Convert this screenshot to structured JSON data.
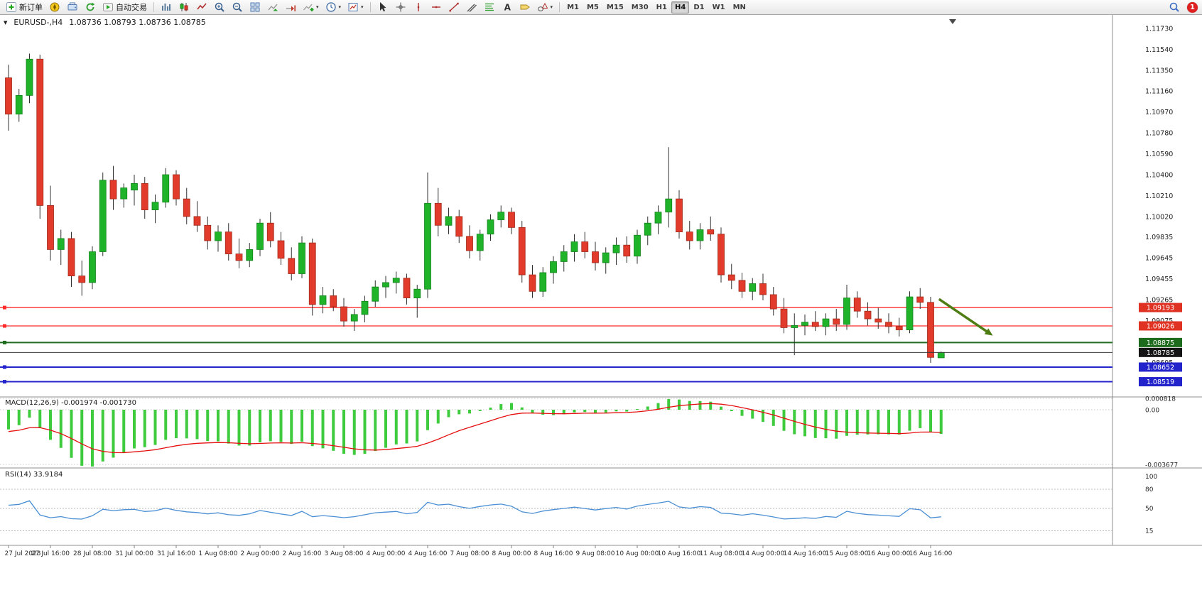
{
  "toolbar": {
    "new_order_label": "新订单",
    "autotrading_label": "自动交易",
    "timeframes": [
      "M1",
      "M5",
      "M15",
      "M30",
      "H1",
      "H4",
      "D1",
      "W1",
      "MN"
    ],
    "active_timeframe": "H4",
    "notification_count": "1"
  },
  "chart": {
    "symbol_title": "EURUSD-,H4",
    "ohlc_display": "1.08736 1.08793 1.08736 1.08785"
  },
  "chart_data": {
    "type": "candlestick",
    "symbol": "EURUSD",
    "timeframe": "H4",
    "colors": {
      "bull": "#1fb32a",
      "bull_border": "#13831c",
      "bear": "#e23b2b",
      "bear_border": "#a02a1b",
      "wick": "#303030",
      "macd_hist": "#3ecb3e",
      "macd_signal": "#e60f0f",
      "rsi_line": "#4a8fd4"
    },
    "price_axis_labels": [
      "1.11730",
      "1.11540",
      "1.11350",
      "1.11160",
      "1.10970",
      "1.10780",
      "1.10590",
      "1.10400",
      "1.10210",
      "1.10020",
      "1.09835",
      "1.09645",
      "1.09455",
      "1.09265",
      "1.09075",
      "1.08885",
      "1.08695"
    ],
    "x_labels": [
      "27 Jul 2023",
      "27 Jul 16:00",
      "28 Jul 08:00",
      "31 Jul 00:00",
      "31 Jul 16:00",
      "1 Aug 08:00",
      "2 Aug 00:00",
      "2 Aug 16:00",
      "3 Aug 08:00",
      "4 Aug 00:00",
      "4 Aug 16:00",
      "7 Aug 08:00",
      "8 Aug 00:00",
      "8 Aug 16:00",
      "9 Aug 08:00",
      "10 Aug 00:00",
      "10 Aug 16:00",
      "11 Aug 08:00",
      "14 Aug 00:00",
      "14 Aug 16:00",
      "15 Aug 08:00",
      "16 Aug 00:00",
      "16 Aug 16:00"
    ],
    "candles": [
      [
        1.1128,
        1.114,
        1.108,
        1.1095
      ],
      [
        1.1095,
        1.1118,
        1.1088,
        1.1112
      ],
      [
        1.1112,
        1.115,
        1.1105,
        1.1145
      ],
      [
        1.1145,
        1.1149,
        1.1,
        1.1012
      ],
      [
        1.1012,
        1.103,
        1.0962,
        1.0972
      ],
      [
        1.0972,
        1.099,
        1.0958,
        1.0982
      ],
      [
        1.0982,
        1.0988,
        1.0938,
        1.0948
      ],
      [
        1.0948,
        1.0962,
        1.093,
        1.0942
      ],
      [
        1.0942,
        1.0975,
        1.0936,
        1.097
      ],
      [
        1.097,
        1.1042,
        1.0966,
        1.1035
      ],
      [
        1.1035,
        1.1048,
        1.1008,
        1.1018
      ],
      [
        1.1018,
        1.1032,
        1.101,
        1.1028
      ],
      [
        1.1026,
        1.104,
        1.1012,
        1.1032
      ],
      [
        1.1032,
        1.1038,
        1.1,
        1.1008
      ],
      [
        1.1008,
        1.1022,
        1.0996,
        1.1015
      ],
      [
        1.1015,
        1.1046,
        1.101,
        1.104
      ],
      [
        1.104,
        1.1044,
        1.1012,
        1.1018
      ],
      [
        1.1018,
        1.1028,
        1.0995,
        1.1002
      ],
      [
        1.1002,
        1.1016,
        1.0988,
        1.0994
      ],
      [
        1.0994,
        1.1002,
        1.0972,
        1.098
      ],
      [
        1.098,
        1.0994,
        1.097,
        1.0988
      ],
      [
        1.0988,
        1.0996,
        1.0962,
        1.0968
      ],
      [
        1.0968,
        1.0982,
        1.0955,
        1.0962
      ],
      [
        1.0962,
        1.0978,
        1.0956,
        1.0972
      ],
      [
        1.0972,
        1.1,
        1.0966,
        1.0996
      ],
      [
        1.0996,
        1.1006,
        1.0974,
        1.098
      ],
      [
        1.098,
        1.0988,
        1.0958,
        1.0964
      ],
      [
        1.0964,
        1.0974,
        1.0944,
        1.095
      ],
      [
        1.095,
        1.0984,
        1.0946,
        1.0978
      ],
      [
        1.0978,
        1.0982,
        1.0912,
        1.0922
      ],
      [
        1.0922,
        1.0938,
        1.0914,
        1.093
      ],
      [
        1.093,
        1.0936,
        1.0916,
        1.092
      ],
      [
        1.092,
        1.0928,
        1.0902,
        1.0907
      ],
      [
        1.0907,
        1.0918,
        1.0898,
        1.0913
      ],
      [
        1.0913,
        1.093,
        1.0906,
        1.0925
      ],
      [
        1.0925,
        1.0944,
        1.092,
        1.0938
      ],
      [
        1.0938,
        1.0948,
        1.0928,
        1.0942
      ],
      [
        1.0942,
        1.0952,
        1.0932,
        1.0946
      ],
      [
        1.0946,
        1.095,
        1.0922,
        1.0928
      ],
      [
        1.0928,
        1.094,
        1.091,
        1.0936
      ],
      [
        1.0936,
        1.1042,
        1.0928,
        1.1014
      ],
      [
        1.1014,
        1.1028,
        1.0984,
        1.0994
      ],
      [
        1.0994,
        1.101,
        1.0986,
        1.1002
      ],
      [
        1.1002,
        1.1008,
        1.0978,
        1.0984
      ],
      [
        1.0984,
        1.0994,
        1.0964,
        1.0971
      ],
      [
        1.0971,
        1.099,
        1.0962,
        1.0986
      ],
      [
        1.0986,
        1.1004,
        1.098,
        1.0999
      ],
      [
        1.0999,
        1.1012,
        1.0992,
        1.1006
      ],
      [
        1.1006,
        1.101,
        1.0986,
        1.0992
      ],
      [
        1.0992,
        1.0998,
        1.0942,
        1.0949
      ],
      [
        1.0949,
        1.0958,
        1.0928,
        1.0934
      ],
      [
        1.0934,
        1.0956,
        1.0929,
        1.0951
      ],
      [
        1.0951,
        1.0966,
        1.0941,
        1.0961
      ],
      [
        1.0961,
        1.0976,
        1.0952,
        1.097
      ],
      [
        1.097,
        1.0986,
        1.0961,
        1.0979
      ],
      [
        1.0979,
        1.0988,
        1.0964,
        1.097
      ],
      [
        1.097,
        1.0979,
        1.0953,
        1.096
      ],
      [
        1.096,
        1.0974,
        1.095,
        1.0969
      ],
      [
        1.0969,
        1.0983,
        1.0958,
        1.0976
      ],
      [
        1.0976,
        1.0984,
        1.096,
        1.0966
      ],
      [
        1.0966,
        1.099,
        1.0959,
        1.0985
      ],
      [
        1.0985,
        1.1002,
        1.0976,
        1.0996
      ],
      [
        1.0996,
        1.1012,
        1.0986,
        1.1006
      ],
      [
        1.1006,
        1.1065,
        1.0992,
        1.1018
      ],
      [
        1.1018,
        1.1026,
        1.0982,
        1.0988
      ],
      [
        1.0988,
        1.0998,
        1.0972,
        1.098
      ],
      [
        1.098,
        1.0996,
        1.0972,
        1.099
      ],
      [
        1.099,
        1.1002,
        1.098,
        1.0986
      ],
      [
        1.0986,
        1.0992,
        1.0942,
        1.0949
      ],
      [
        1.0949,
        1.0959,
        1.0936,
        1.0944
      ],
      [
        1.0944,
        1.0951,
        1.0928,
        1.0934
      ],
      [
        1.0934,
        1.0946,
        1.0926,
        1.0941
      ],
      [
        1.0941,
        1.095,
        1.0926,
        1.0931
      ],
      [
        1.0931,
        1.0938,
        1.0912,
        1.0918
      ],
      [
        1.0918,
        1.0928,
        1.0896,
        1.0901
      ],
      [
        1.0901,
        1.0914,
        1.0876,
        1.0903
      ],
      [
        1.0903,
        1.0913,
        1.0894,
        1.0906
      ],
      [
        1.0906,
        1.0916,
        1.0898,
        1.0902
      ],
      [
        1.0902,
        1.0914,
        1.0894,
        1.0909
      ],
      [
        1.0909,
        1.0918,
        1.0898,
        1.0904
      ],
      [
        1.0904,
        1.094,
        1.0899,
        1.0928
      ],
      [
        1.0928,
        1.0934,
        1.091,
        1.0916
      ],
      [
        1.0916,
        1.0924,
        1.0903,
        1.0909
      ],
      [
        1.0909,
        1.0919,
        1.09,
        1.0906
      ],
      [
        1.0906,
        1.0914,
        1.0896,
        1.0902
      ],
      [
        1.0902,
        1.091,
        1.0893,
        1.0899
      ],
      [
        1.0899,
        1.0934,
        1.0896,
        1.0929
      ],
      [
        1.0929,
        1.0937,
        1.0918,
        1.0924
      ],
      [
        1.0924,
        1.0929,
        1.0869,
        1.0874
      ],
      [
        1.08736,
        1.08793,
        1.08736,
        1.08785
      ]
    ],
    "horizontal_lines": [
      {
        "label": "1.09193",
        "price": 1.09193,
        "color": "#ff2a2a",
        "tag_color": "#e03222",
        "width": 1.3
      },
      {
        "label": "1.09026",
        "price": 1.09026,
        "color": "#ff2a2a",
        "tag_color": "#e03222",
        "width": 1.3
      },
      {
        "label": "1.08875",
        "price": 1.08875,
        "color": "#1d6b1d",
        "tag_color": "#1d6b1d",
        "width": 2
      },
      {
        "label": "1.08652",
        "price": 1.08652,
        "color": "#2323cc",
        "tag_color": "#2323cc",
        "width": 2
      },
      {
        "label": "1.08519",
        "price": 1.08519,
        "color": "#2323cc",
        "tag_color": "#2323cc",
        "width": 2
      }
    ],
    "current_price": {
      "label": "1.08785",
      "price": 1.08785,
      "line_color": "#3a3a3a",
      "tag_color": "#141414"
    },
    "arrow_annotation": {
      "color": "#4e7d14",
      "from": {
        "index": 88.8,
        "price": 1.0927
      },
      "to": {
        "index": 93.6,
        "price": 1.0896
      }
    },
    "panels": {
      "macd": {
        "label": "MACD(12,26,9) -0.001974 -0.001730",
        "value_main": "-0.001974",
        "value_signal": "-0.001730",
        "axis_labels": [
          "0.000818",
          "0.00",
          "-0.003677"
        ],
        "axis_values": [
          0.000818,
          0,
          -0.003677
        ]
      },
      "rsi": {
        "label": "RSI(14) 33.9184",
        "value": "33.9184",
        "axis_labels": [
          "100",
          "80",
          "50",
          "15"
        ],
        "axis_values": [
          100,
          80,
          50,
          15
        ],
        "levels": [
          80,
          50,
          15
        ]
      }
    }
  }
}
